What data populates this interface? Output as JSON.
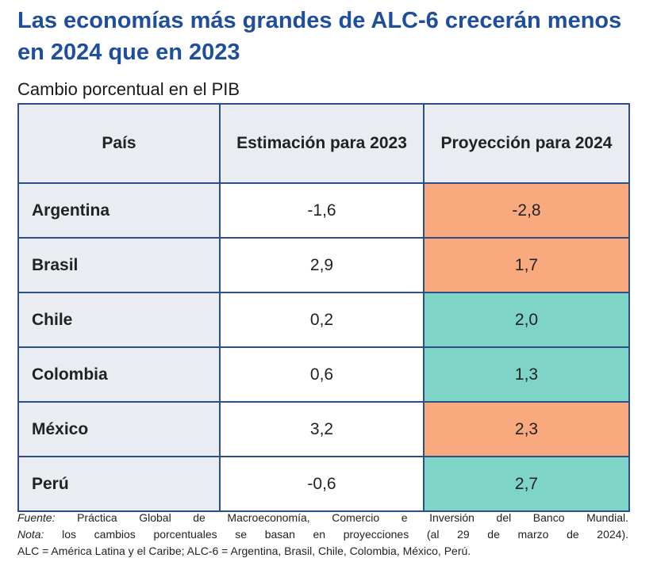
{
  "title": "Las economías más grandes de ALC-6 crecerán menos en 2024 que en 2023",
  "subtitle": "Cambio porcentual en el PIB",
  "colors": {
    "decline": "#f9a97e",
    "growth": "#7fd4c8",
    "title": "#1f4e9c",
    "border": "#2c4f8a",
    "header_bg": "#e9ecf1"
  },
  "chart_data": {
    "type": "table",
    "columns": [
      "País",
      "Estimación para 2023",
      "Proyección para 2024"
    ],
    "rows": [
      {
        "country": "Argentina",
        "est2023": "-1,6",
        "proj2024": "-2,8",
        "status": "decline"
      },
      {
        "country": "Brasil",
        "est2023": "2,9",
        "proj2024": "1,7",
        "status": "decline"
      },
      {
        "country": "Chile",
        "est2023": "0,2",
        "proj2024": "2,0",
        "status": "growth"
      },
      {
        "country": "Colombia",
        "est2023": "0,6",
        "proj2024": "1,3",
        "status": "growth"
      },
      {
        "country": "México",
        "est2023": "3,2",
        "proj2024": "2,3",
        "status": "decline"
      },
      {
        "country": "Perú",
        "est2023": "-0,6",
        "proj2024": "2,7",
        "status": "growth"
      }
    ]
  },
  "notes": {
    "source_label": "Fuente:",
    "source_text": " Práctica Global de Macroeconomía, Comercio e Inversión del Banco Mundial.",
    "note_label": "Nota:",
    "note_text": " los cambios porcentuales se basan en proyecciones (al 29 de marzo de 2024).",
    "abbrev": "ALC = América Latina y el Caribe; ALC-6 = Argentina, Brasil, Chile, Colombia, México, Perú."
  }
}
